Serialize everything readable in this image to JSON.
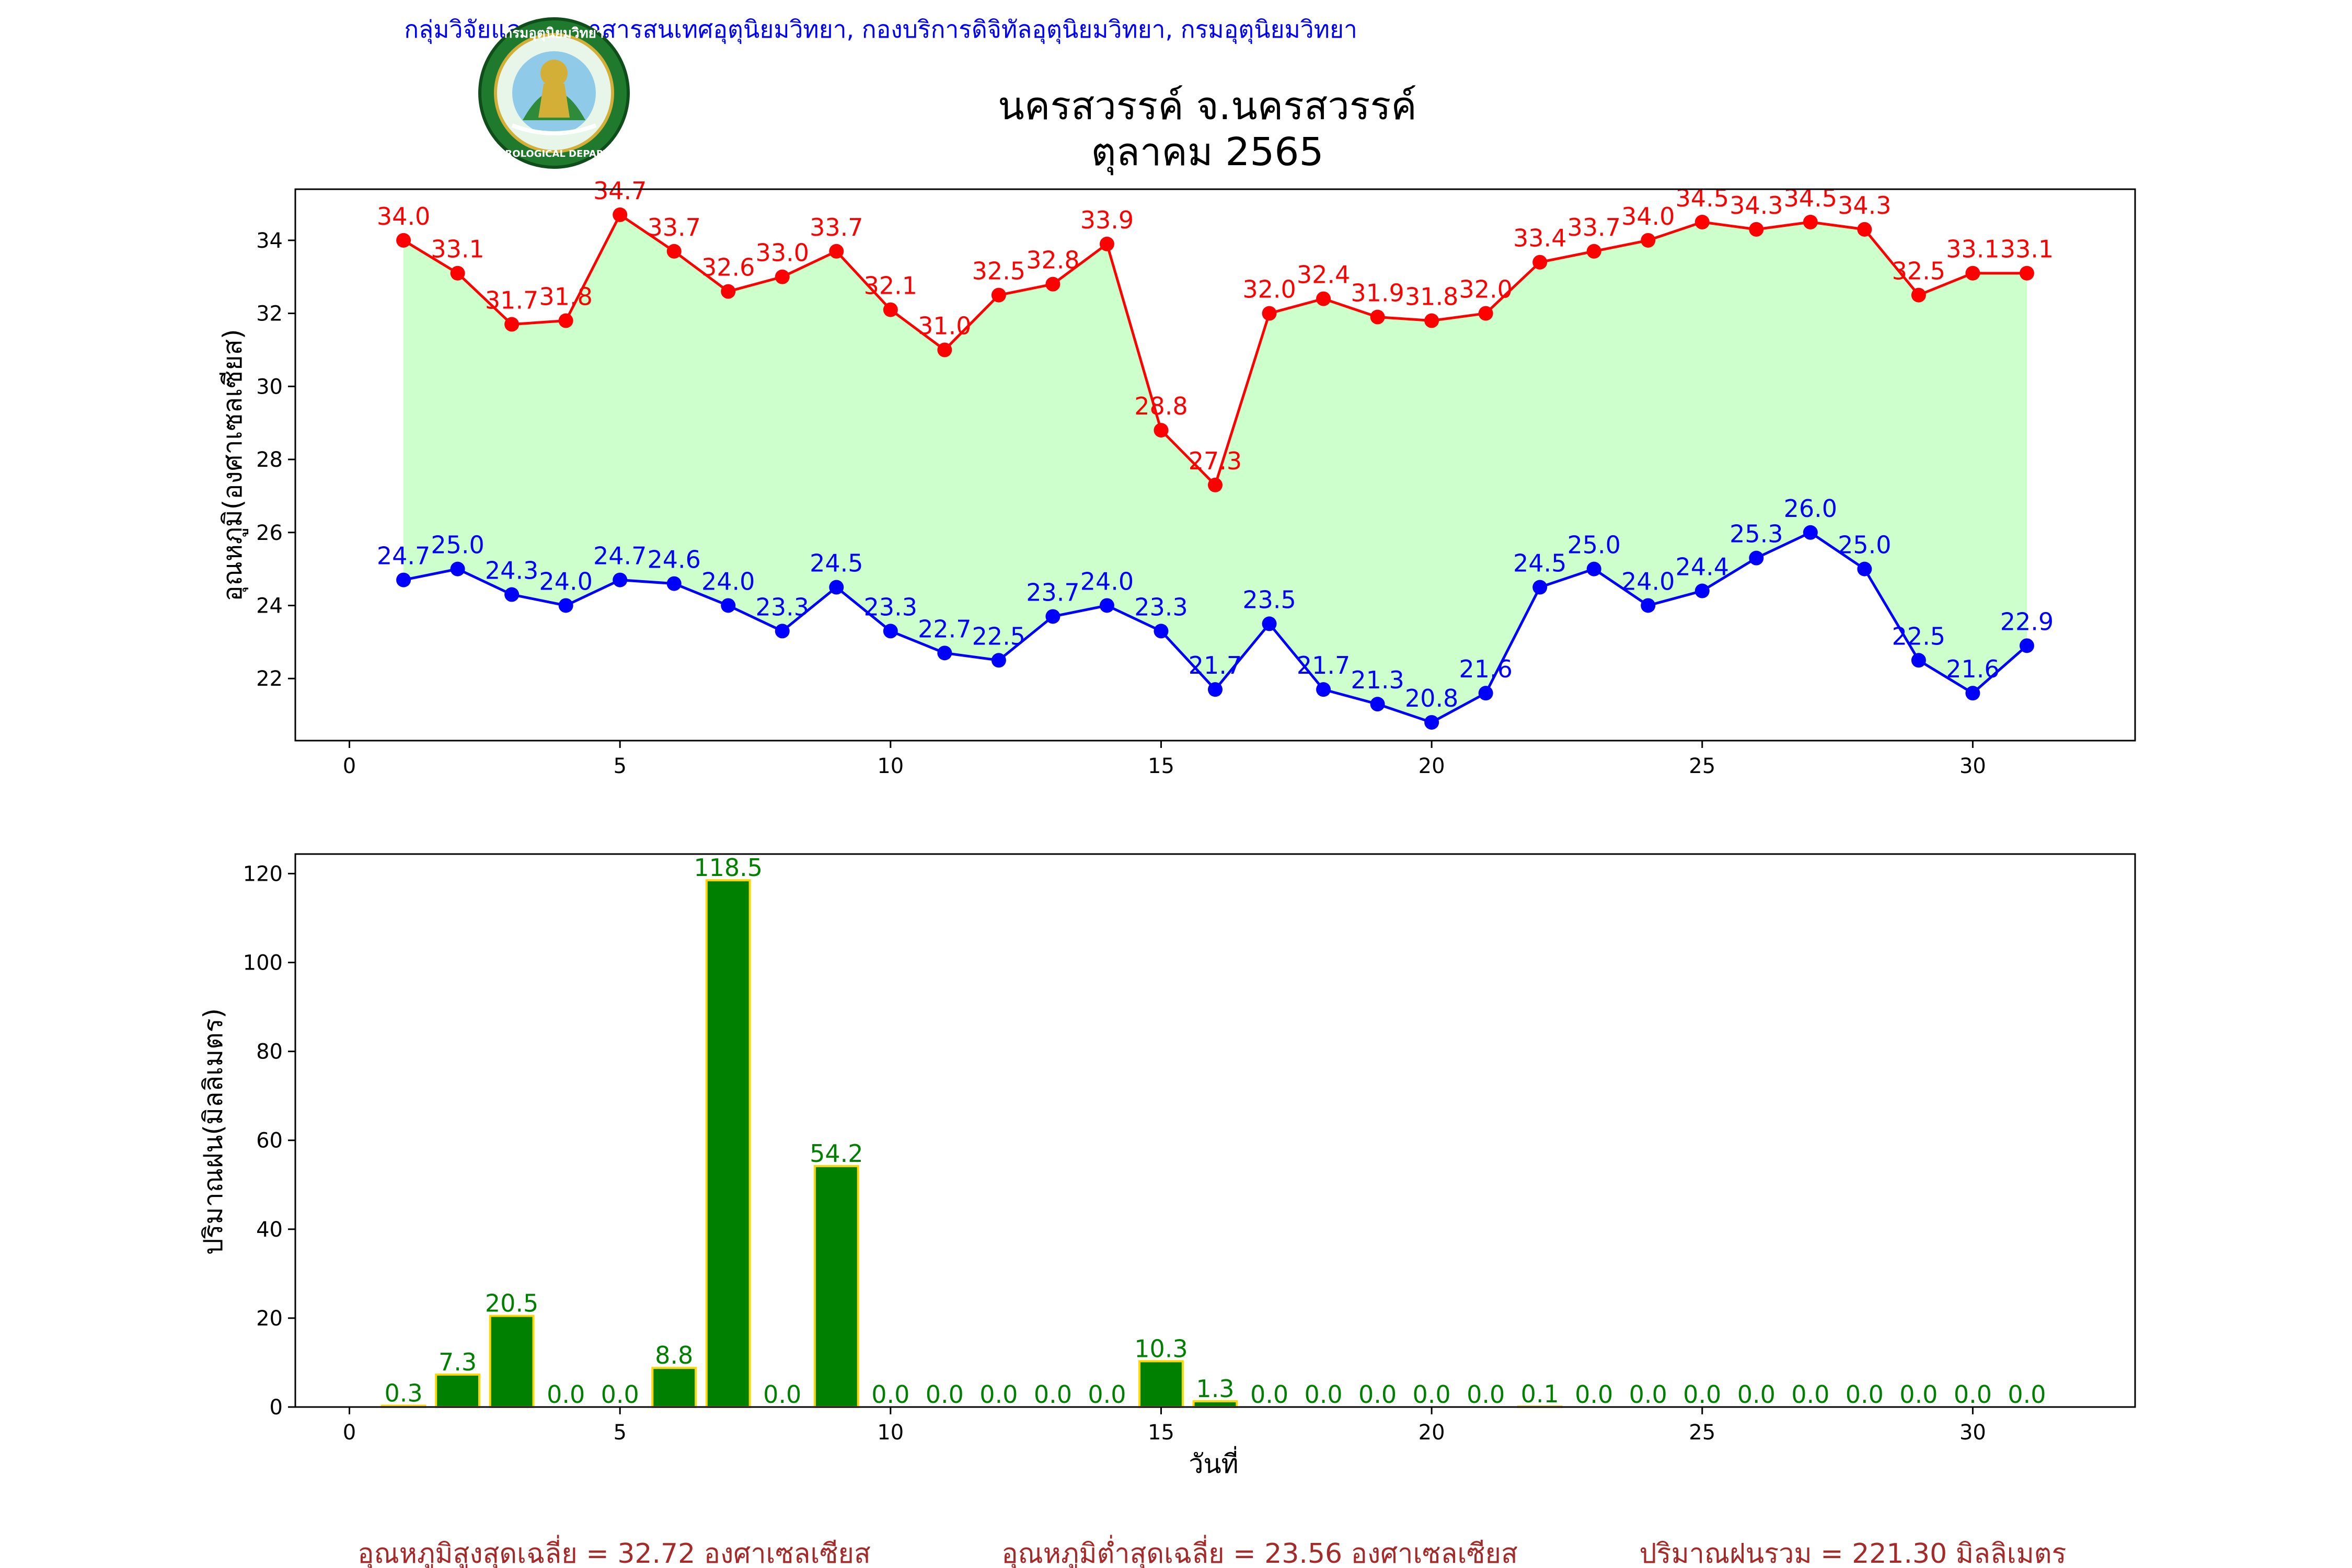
{
  "header": {
    "agency": "กลุ่มวิจัยและพัฒนาสารสนเทศอุตุนิยมวิทยา, กองบริการดิจิทัลอุตุนิยมวิทยา, กรมอุตุนิยมวิทยา",
    "station": "นครสวรรค์  จ.นครสวรรค์",
    "period": "ตุลาคม 2565",
    "logo_text_top": "กรมอุตุนิยมวิทยา",
    "logo_text_bottom": "METEOROLOGICAL DEPARTMENT"
  },
  "colors": {
    "max_line": "#ff0000",
    "min_line": "#0000ff",
    "fill_between": "#ccffcc",
    "bar_fill": "#008000",
    "bar_edge": "#ffd700",
    "bar_label": "#008000",
    "header_text": "#0000ff",
    "summary_text": "#a52a2a"
  },
  "chart_data": [
    {
      "type": "line",
      "title": "",
      "xlabel": "",
      "ylabel": "อุณหภูมิ(องศาเซลเซียส)",
      "xlim": [
        -1,
        33
      ],
      "ylim": [
        20.3,
        35.4
      ],
      "xticks": [
        0,
        5,
        10,
        15,
        20,
        25,
        30
      ],
      "yticks": [
        22,
        24,
        26,
        28,
        30,
        32,
        34
      ],
      "grid": false,
      "x": [
        1,
        2,
        3,
        4,
        5,
        6,
        7,
        8,
        9,
        10,
        11,
        12,
        13,
        14,
        15,
        16,
        17,
        18,
        19,
        20,
        21,
        22,
        23,
        24,
        25,
        26,
        27,
        28,
        29,
        30,
        31
      ],
      "series": [
        {
          "name": "",
          "color": "#ff0000",
          "values": [
            34.0,
            33.1,
            31.7,
            31.8,
            34.7,
            33.7,
            32.6,
            33.0,
            33.7,
            32.1,
            31.0,
            32.5,
            32.8,
            33.9,
            28.8,
            27.3,
            32.0,
            32.4,
            31.9,
            31.8,
            32.0,
            33.4,
            33.7,
            34.0,
            34.5,
            34.3,
            34.5,
            34.3,
            32.5,
            33.1,
            33.1
          ]
        },
        {
          "name": "",
          "color": "#0000ff",
          "values": [
            24.7,
            25.0,
            24.3,
            24.0,
            24.7,
            24.6,
            24.0,
            23.3,
            24.5,
            23.3,
            22.7,
            22.5,
            23.7,
            24.0,
            23.3,
            21.7,
            23.5,
            21.7,
            21.3,
            20.8,
            21.6,
            24.5,
            25.0,
            24.0,
            24.4,
            25.3,
            26.0,
            25.0,
            22.5,
            21.6,
            22.9
          ]
        }
      ],
      "fill_between": true
    },
    {
      "type": "bar",
      "title": "",
      "xlabel": "วันที่",
      "ylabel": "ปริมาณฝน(มิลลิเมตร)",
      "xlim": [
        -1,
        33
      ],
      "ylim": [
        0,
        124.4
      ],
      "xticks": [
        0,
        5,
        10,
        15,
        20,
        25,
        30
      ],
      "yticks": [
        0,
        20,
        40,
        60,
        80,
        100,
        120
      ],
      "grid": false,
      "x": [
        1,
        2,
        3,
        4,
        5,
        6,
        7,
        8,
        9,
        10,
        11,
        12,
        13,
        14,
        15,
        16,
        17,
        18,
        19,
        20,
        21,
        22,
        23,
        24,
        25,
        26,
        27,
        28,
        29,
        30,
        31
      ],
      "values": [
        0.3,
        7.3,
        20.5,
        0.0,
        0.0,
        8.8,
        118.5,
        0.0,
        54.2,
        0.0,
        0.0,
        0.0,
        0.0,
        0.0,
        10.3,
        1.3,
        0.0,
        0.0,
        0.0,
        0.0,
        0.0,
        0.1,
        0.0,
        0.0,
        0.0,
        0.0,
        0.0,
        0.0,
        0.0,
        0.0,
        0.0
      ]
    }
  ],
  "summary": {
    "avg_max": "อุณหภูมิสูงสุดเฉลี่ย = 32.72 องศาเซลเซียส",
    "avg_min": "อุณหภูมิต่ำสุดเฉลี่ย = 23.56 องศาเซลเซียส",
    "total_rain": "ปริมาณฝนรวม = 221.30 มิลลิเมตร"
  }
}
